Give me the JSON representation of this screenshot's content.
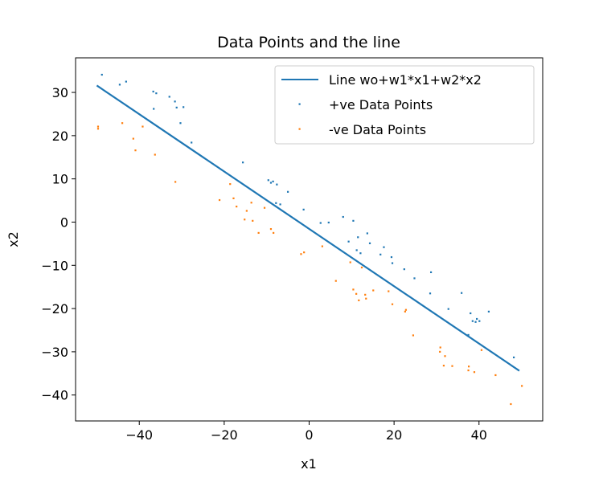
{
  "chart_data": {
    "type": "scatter",
    "title": "Data Points and the line",
    "xlabel": "x1",
    "ylabel": "x2",
    "xlim": [
      -55,
      55
    ],
    "ylim": [
      -46,
      38
    ],
    "xticks": [
      -40,
      -20,
      0,
      20,
      40
    ],
    "yticks": [
      -40,
      -30,
      -20,
      -10,
      0,
      10,
      20,
      30
    ],
    "grid": false,
    "legend": "upper right",
    "line": {
      "name": "Line wo+w1*x1+w2*x2",
      "color": "#1f77b4",
      "points": [
        [
          -50,
          31.6
        ],
        [
          49.5,
          -34.4
        ]
      ]
    },
    "series": [
      {
        "name": "+ve Data Points",
        "color": "#1f77b4",
        "points": [
          [
            -48.8,
            34.1
          ],
          [
            -44.6,
            31.8
          ],
          [
            -43.1,
            32.5
          ],
          [
            -36.7,
            30.2
          ],
          [
            -36.0,
            29.8
          ],
          [
            -36.6,
            26.2
          ],
          [
            -32.9,
            29.0
          ],
          [
            -31.6,
            27.9
          ],
          [
            -31.2,
            26.5
          ],
          [
            -29.6,
            26.6
          ],
          [
            -30.3,
            22.9
          ],
          [
            -27.7,
            18.4
          ],
          [
            -15.6,
            13.8
          ],
          [
            -9.6,
            9.7
          ],
          [
            -9.0,
            9.1
          ],
          [
            -8.5,
            9.4
          ],
          [
            -7.6,
            8.7
          ],
          [
            -7.8,
            4.4
          ],
          [
            -6.8,
            4.1
          ],
          [
            -5.0,
            7.0
          ],
          [
            -1.3,
            2.9
          ],
          [
            2.7,
            -0.2
          ],
          [
            4.6,
            -0.1
          ],
          [
            8.0,
            1.2
          ],
          [
            10.4,
            0.3
          ],
          [
            13.7,
            -2.6
          ],
          [
            11.5,
            -3.5
          ],
          [
            9.3,
            -4.5
          ],
          [
            14.3,
            -4.9
          ],
          [
            11.2,
            -6.5
          ],
          [
            12.1,
            -7.2
          ],
          [
            17.6,
            -5.8
          ],
          [
            16.8,
            -7.5
          ],
          [
            19.4,
            -8.1
          ],
          [
            19.6,
            -9.5
          ],
          [
            22.4,
            -10.9
          ],
          [
            24.8,
            -13.0
          ],
          [
            28.7,
            -11.6
          ],
          [
            28.5,
            -16.5
          ],
          [
            35.9,
            -16.4
          ],
          [
            32.8,
            -20.1
          ],
          [
            38.0,
            -21.1
          ],
          [
            42.3,
            -20.7
          ],
          [
            39.2,
            -23.1
          ],
          [
            38.5,
            -22.9
          ],
          [
            39.5,
            -22.4
          ],
          [
            40.1,
            -22.9
          ],
          [
            37.5,
            -26.1
          ],
          [
            48.2,
            -31.3
          ]
        ]
      },
      {
        "name": "-ve Data Points",
        "color": "#ff7f0e",
        "points": [
          [
            -49.7,
            21.6
          ],
          [
            -49.7,
            22.1
          ],
          [
            -44.0,
            22.9
          ],
          [
            -39.2,
            22.1
          ],
          [
            -41.4,
            19.3
          ],
          [
            -40.9,
            16.6
          ],
          [
            -36.3,
            15.6
          ],
          [
            -31.5,
            9.3
          ],
          [
            -21.1,
            5.1
          ],
          [
            -18.6,
            8.8
          ],
          [
            -17.8,
            5.5
          ],
          [
            -17.1,
            3.6
          ],
          [
            -15.2,
            0.6
          ],
          [
            -14.7,
            2.6
          ],
          [
            -13.6,
            4.5
          ],
          [
            -13.3,
            0.3
          ],
          [
            -11.9,
            -2.5
          ],
          [
            -10.5,
            3.3
          ],
          [
            -9.0,
            -1.6
          ],
          [
            -8.4,
            -2.5
          ],
          [
            -1.9,
            -7.4
          ],
          [
            -1.2,
            -7.0
          ],
          [
            3.1,
            -5.6
          ],
          [
            6.3,
            -13.6
          ],
          [
            9.7,
            -9.3
          ],
          [
            10.4,
            -15.6
          ],
          [
            11.1,
            -16.6
          ],
          [
            11.7,
            -18.1
          ],
          [
            12.4,
            -10.5
          ],
          [
            13.2,
            -16.8
          ],
          [
            13.4,
            -17.7
          ],
          [
            15.1,
            -15.8
          ],
          [
            18.7,
            -16.0
          ],
          [
            19.6,
            -19.0
          ],
          [
            22.6,
            -20.7
          ],
          [
            22.8,
            -20.3
          ],
          [
            24.5,
            -26.2
          ],
          [
            30.9,
            -29.0
          ],
          [
            30.8,
            -30.0
          ],
          [
            32.0,
            -31.0
          ],
          [
            31.7,
            -33.2
          ],
          [
            33.7,
            -33.3
          ],
          [
            37.5,
            -34.3
          ],
          [
            37.6,
            -33.4
          ],
          [
            38.9,
            -34.7
          ],
          [
            40.6,
            -29.6
          ],
          [
            43.9,
            -35.4
          ],
          [
            47.5,
            -42.1
          ],
          [
            50.1,
            -37.9
          ]
        ]
      }
    ]
  }
}
